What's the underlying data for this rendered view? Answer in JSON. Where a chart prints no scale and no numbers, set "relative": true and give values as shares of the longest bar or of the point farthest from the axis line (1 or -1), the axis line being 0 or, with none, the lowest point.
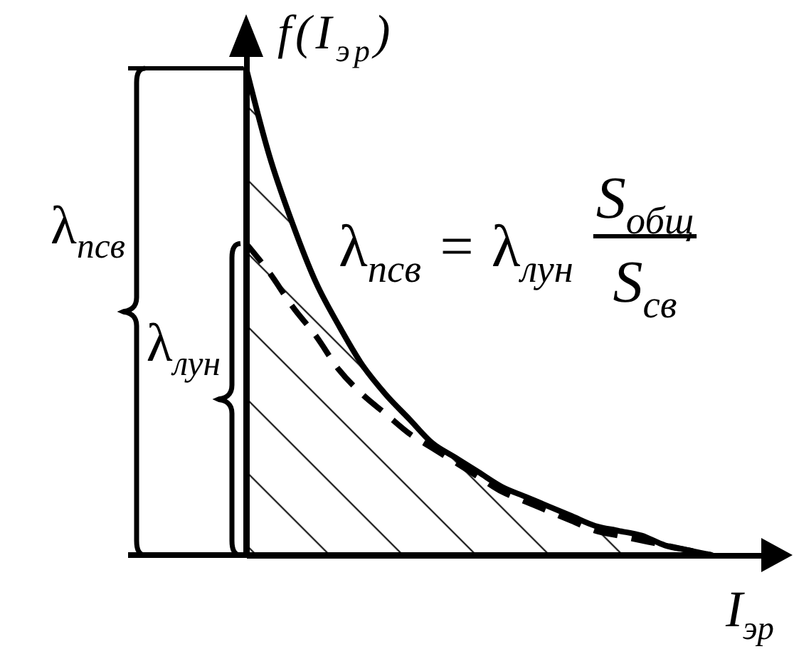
{
  "chart_data": {
    "type": "line",
    "relative": true,
    "xlabel": "I$_{эр}$",
    "ylabel": "f(I$_{эр}$)",
    "categories": [
      null,
      null,
      null,
      null,
      null,
      null,
      null,
      null,
      null,
      null,
      null,
      null,
      null,
      null,
      null,
      null,
      null,
      null,
      null,
      null,
      null
    ],
    "series": [
      {
        "type": "area",
        "color": "#000000",
        "values": [
          1,
          0.82,
          0.68,
          0.56,
          0.47,
          0.39,
          0.33,
          0.28,
          0.23,
          0.2,
          0.17,
          0.14,
          0.12,
          0.1,
          0.08,
          0.06,
          0.05,
          0.04,
          0.02,
          0.01,
          0
        ]
      },
      {
        "type": "line",
        "line_style": "dashed",
        "color": "#000000",
        "values": [
          0.64,
          0.58,
          0.51,
          0.45,
          0.38,
          0.33,
          0.29,
          0.25,
          0.22,
          0.19,
          0.16,
          0.13,
          0.11,
          0.09,
          0.07,
          0.05,
          0.04,
          0.03,
          0.02,
          0.01,
          0
        ]
      }
    ],
    "annotations": [
      "λ$_{псв}$ = λ$_{лун}$",
      "S$_{общ}$",
      "S$_{св}$",
      "λ$_{псв}$",
      "λ$_{лун}$"
    ]
  }
}
